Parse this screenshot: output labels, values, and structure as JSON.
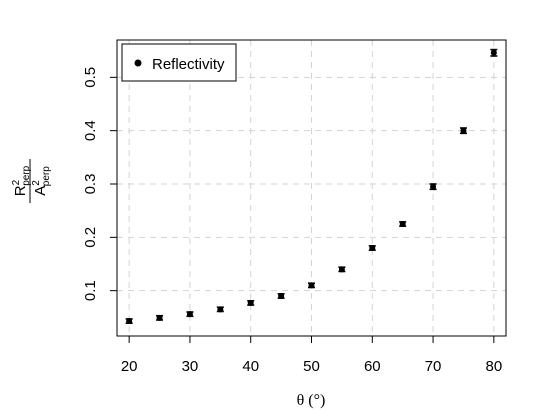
{
  "chart_data": {
    "type": "scatter",
    "xlabel": "θ (°)",
    "ylabel": {
      "numerator_base": "R",
      "numerator_sup": "2",
      "numerator_sub": "perp",
      "denominator_base": "A",
      "denominator_sup": "2",
      "denominator_sub": "perp"
    },
    "xlim": [
      18,
      82
    ],
    "ylim": [
      0.015,
      0.57
    ],
    "grid": true,
    "legend": {
      "position": "top-left",
      "entries": [
        "Reflectivity"
      ]
    },
    "x_ticks": [
      20,
      30,
      40,
      50,
      60,
      70,
      80
    ],
    "x_tick_labels": [
      "20",
      "30",
      "40",
      "50",
      "60",
      "70",
      "80"
    ],
    "y_ticks": [
      0.1,
      0.2,
      0.3,
      0.4,
      0.5
    ],
    "y_tick_labels": [
      "0.1",
      "0.2",
      "0.3",
      "0.4",
      "0.5"
    ],
    "series": [
      {
        "name": "Reflectivity",
        "x": [
          20,
          25,
          30,
          35,
          40,
          45,
          50,
          55,
          60,
          65,
          70,
          75,
          80
        ],
        "y": [
          0.043,
          0.049,
          0.056,
          0.065,
          0.077,
          0.09,
          0.11,
          0.14,
          0.18,
          0.225,
          0.295,
          0.4,
          0.546
        ],
        "error": [
          0.004,
          0.004,
          0.004,
          0.004,
          0.004,
          0.004,
          0.004,
          0.004,
          0.004,
          0.004,
          0.005,
          0.005,
          0.006
        ]
      }
    ]
  }
}
